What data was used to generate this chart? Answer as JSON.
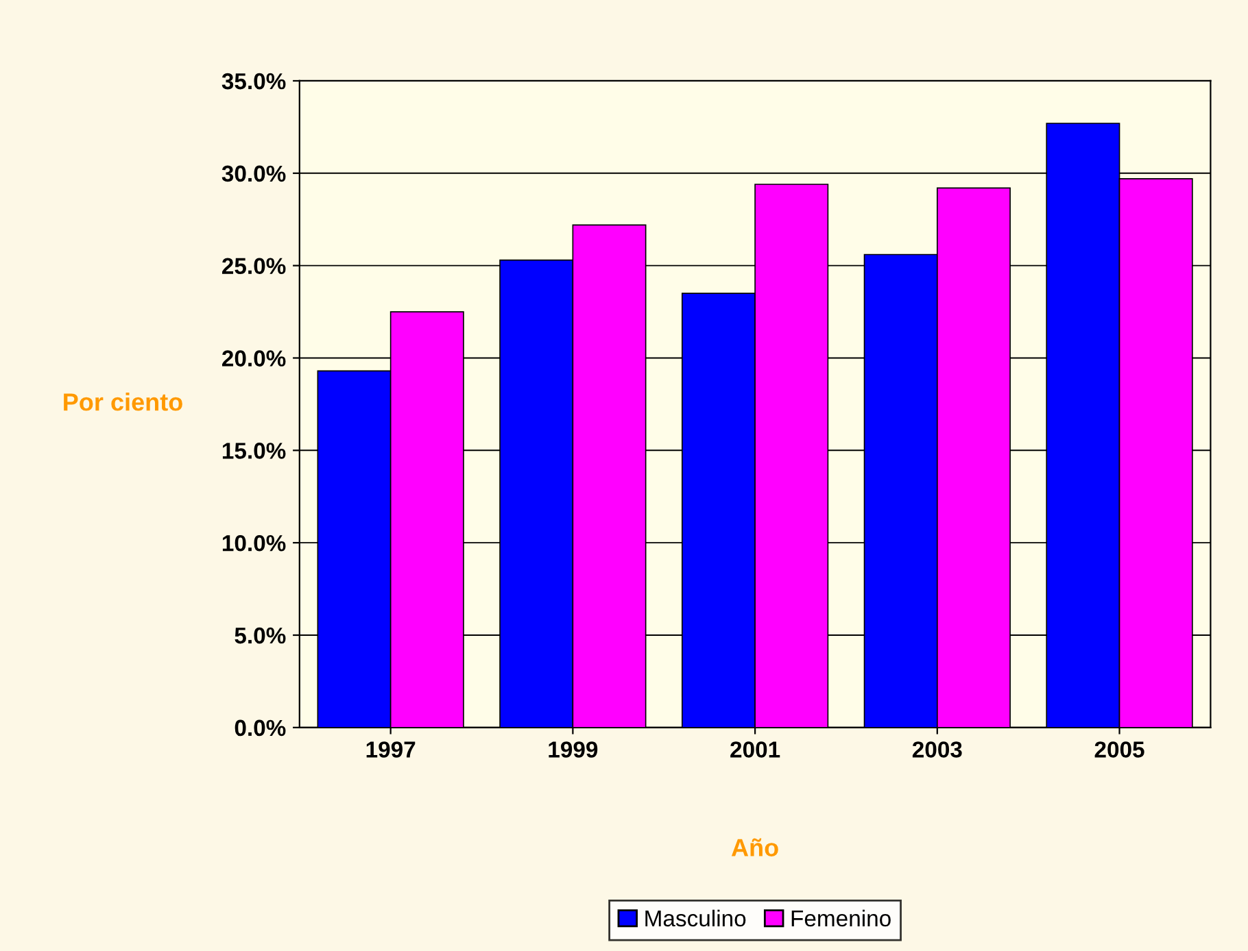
{
  "chart_data": {
    "type": "bar",
    "xlabel": "Año",
    "ylabel": "Por ciento",
    "categories": [
      "1997",
      "1999",
      "2001",
      "2003",
      "2005"
    ],
    "series": [
      {
        "name": "Masculino",
        "color": "#0000ff",
        "values": [
          19.3,
          25.3,
          23.5,
          25.6,
          32.7
        ]
      },
      {
        "name": "Femenino",
        "color": "#ff00ff",
        "values": [
          22.5,
          27.2,
          29.4,
          29.2,
          29.7
        ]
      }
    ],
    "ylim": [
      0,
      35
    ],
    "yticks": [
      {
        "value": 0,
        "label": "0.0%"
      },
      {
        "value": 5,
        "label": "5.0%"
      },
      {
        "value": 10,
        "label": "10.0%"
      },
      {
        "value": 15,
        "label": "15.0%"
      },
      {
        "value": 20,
        "label": "20.0%"
      },
      {
        "value": 25,
        "label": "25.0%"
      },
      {
        "value": 30,
        "label": "30.0%"
      },
      {
        "value": 35,
        "label": "35.0%"
      }
    ],
    "grid": "y",
    "legend": "bottom"
  }
}
